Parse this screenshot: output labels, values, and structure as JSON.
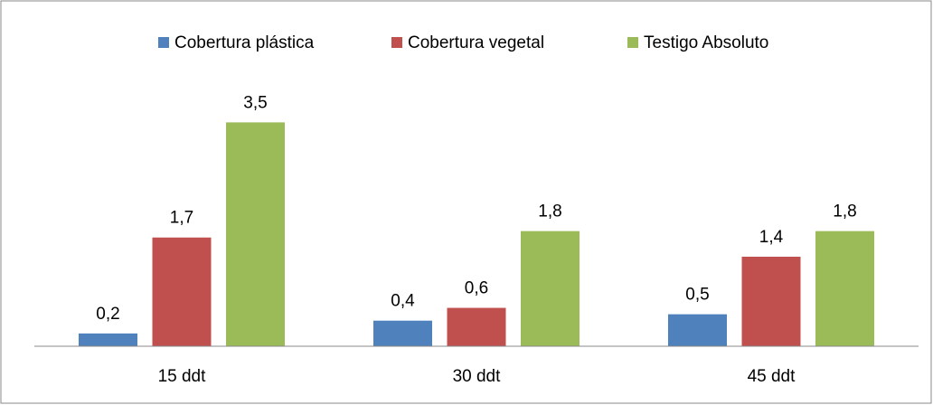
{
  "chart_data": {
    "type": "bar",
    "categories": [
      "15 ddt",
      "30 ddt",
      "45 ddt"
    ],
    "series": [
      {
        "name": "Cobertura plástica",
        "color": "#4f81bd",
        "values": [
          0.2,
          0.4,
          0.5
        ],
        "value_labels": [
          "0,2",
          "0,4",
          "0,5"
        ]
      },
      {
        "name": "Cobertura vegetal",
        "color": "#c0504d",
        "values": [
          1.7,
          0.6,
          1.4
        ],
        "value_labels": [
          "1,7",
          "0,6",
          "1,4"
        ]
      },
      {
        "name": "Testigo Absoluto",
        "color": "#9bbb59",
        "values": [
          3.5,
          1.8,
          1.8
        ],
        "value_labels": [
          "3,5",
          "1,8",
          "1,8"
        ]
      }
    ],
    "ylim": [
      0,
      4
    ],
    "legend": "top"
  }
}
